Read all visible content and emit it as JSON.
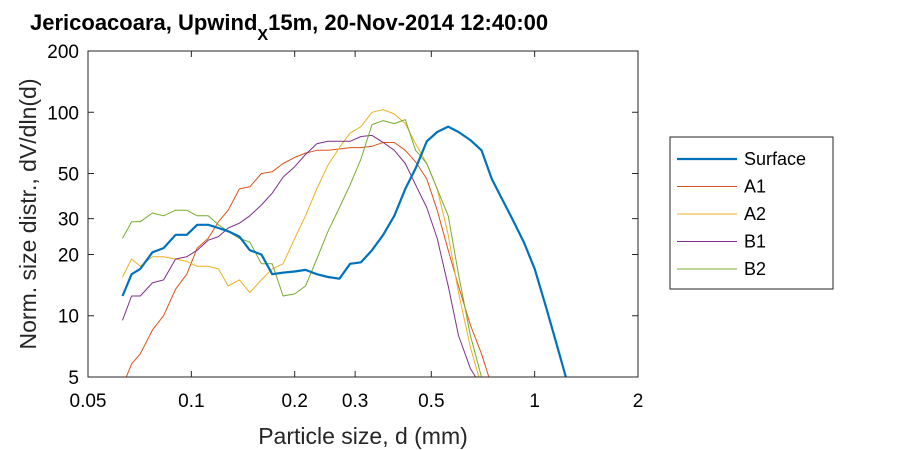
{
  "chart_data": {
    "type": "line",
    "title": {
      "part1": "Jericoacoara, Upwind",
      "subscript": "X",
      "part2": "15m, 20-Nov-2014 12:40:00"
    },
    "xlabel": "Particle size, d (mm)",
    "ylabel": "Norm. size distr., dV/dln(d)",
    "xscale": "log",
    "yscale": "log",
    "xlim": [
      0.05,
      2
    ],
    "ylim": [
      5,
      200
    ],
    "xticks": [
      0.05,
      0.1,
      0.2,
      0.3,
      0.5,
      1,
      2
    ],
    "xtick_labels": [
      "0.05",
      "0.1",
      "0.2",
      "0.3",
      "0.5",
      "1",
      "2"
    ],
    "yticks": [
      5,
      10,
      20,
      30,
      50,
      100,
      200
    ],
    "ytick_labels": [
      "5",
      "10",
      "20",
      "30",
      "50",
      "100",
      "200"
    ],
    "grid": false,
    "legend_position": "right",
    "series": [
      {
        "name": "Surface",
        "color": "#0072BD",
        "linewidth": "thick",
        "x": [
          0.063,
          0.067,
          0.071,
          0.077,
          0.083,
          0.09,
          0.097,
          0.104,
          0.112,
          0.12,
          0.128,
          0.138,
          0.148,
          0.16,
          0.172,
          0.185,
          0.2,
          0.215,
          0.232,
          0.25,
          0.27,
          0.29,
          0.312,
          0.336,
          0.362,
          0.39,
          0.42,
          0.45,
          0.485,
          0.52,
          0.56,
          0.6,
          0.65,
          0.7,
          0.75,
          0.8,
          0.86,
          0.93,
          1.0,
          1.08,
          1.16,
          1.25
        ],
        "y": [
          12.5,
          16,
          17,
          20.5,
          21.5,
          25,
          25,
          28,
          28,
          27,
          26,
          24.5,
          21,
          20,
          16,
          16.3,
          16.5,
          16.8,
          16,
          15.5,
          15.2,
          18,
          18.3,
          21,
          25,
          31,
          42,
          53,
          72,
          80,
          85,
          80,
          73,
          65,
          47,
          38,
          30,
          23,
          17,
          11,
          7.2,
          4.6
        ]
      },
      {
        "name": "A1",
        "color": "#D95319",
        "linewidth": "thin",
        "x": [
          0.063,
          0.067,
          0.071,
          0.077,
          0.083,
          0.09,
          0.097,
          0.104,
          0.112,
          0.12,
          0.128,
          0.138,
          0.148,
          0.16,
          0.172,
          0.185,
          0.2,
          0.215,
          0.232,
          0.25,
          0.27,
          0.29,
          0.312,
          0.336,
          0.362,
          0.39,
          0.42,
          0.45,
          0.485,
          0.52,
          0.56,
          0.6,
          0.65,
          0.7,
          0.75
        ],
        "y": [
          4.5,
          5.8,
          6.5,
          8.5,
          10,
          13.5,
          16,
          21.5,
          24,
          29,
          33,
          42,
          43,
          50,
          51,
          56,
          60,
          63,
          65,
          65,
          66,
          67,
          67,
          68,
          71,
          71,
          65,
          57,
          47,
          33,
          21,
          14,
          9,
          6.5,
          4.5
        ]
      },
      {
        "name": "A2",
        "color": "#EDB120",
        "linewidth": "thin",
        "x": [
          0.063,
          0.067,
          0.071,
          0.077,
          0.083,
          0.09,
          0.097,
          0.104,
          0.112,
          0.12,
          0.128,
          0.138,
          0.148,
          0.16,
          0.172,
          0.185,
          0.2,
          0.215,
          0.232,
          0.25,
          0.27,
          0.29,
          0.312,
          0.336,
          0.362,
          0.39,
          0.42,
          0.45,
          0.485,
          0.52,
          0.56,
          0.6,
          0.65,
          0.7
        ],
        "y": [
          15.5,
          19,
          17.5,
          19.5,
          19.5,
          19,
          18.5,
          17.5,
          17.5,
          17,
          14,
          15,
          13,
          15,
          17,
          18,
          24,
          31,
          42,
          55,
          67,
          79,
          85,
          100,
          103,
          98,
          88,
          70,
          56,
          42,
          25,
          13,
          7,
          4.5
        ]
      },
      {
        "name": "B1",
        "color": "#7E2F8E",
        "linewidth": "thin",
        "x": [
          0.063,
          0.067,
          0.071,
          0.077,
          0.083,
          0.09,
          0.097,
          0.104,
          0.112,
          0.12,
          0.128,
          0.138,
          0.148,
          0.16,
          0.172,
          0.185,
          0.2,
          0.215,
          0.232,
          0.25,
          0.27,
          0.29,
          0.312,
          0.336,
          0.362,
          0.39,
          0.42,
          0.45,
          0.485,
          0.52,
          0.56,
          0.6,
          0.65,
          0.7
        ],
        "y": [
          9.5,
          12.5,
          12.5,
          14.5,
          15,
          19,
          19.5,
          21,
          23.5,
          24.5,
          27,
          28.5,
          31,
          35,
          40,
          48,
          54,
          62,
          70,
          72,
          72,
          72,
          76,
          77,
          71,
          65,
          56,
          44,
          34,
          24,
          14,
          8,
          5.5,
          4.5
        ]
      },
      {
        "name": "B2",
        "color": "#77AC30",
        "linewidth": "thin",
        "x": [
          0.063,
          0.067,
          0.071,
          0.077,
          0.083,
          0.09,
          0.097,
          0.104,
          0.112,
          0.12,
          0.128,
          0.138,
          0.148,
          0.16,
          0.172,
          0.185,
          0.2,
          0.215,
          0.232,
          0.25,
          0.27,
          0.29,
          0.312,
          0.336,
          0.362,
          0.39,
          0.42,
          0.45,
          0.485,
          0.52,
          0.56,
          0.6,
          0.65,
          0.7
        ],
        "y": [
          24,
          29,
          29,
          32,
          31,
          33,
          33,
          31,
          31,
          28,
          26,
          24,
          23,
          18,
          18,
          12.5,
          12.8,
          14,
          19,
          26,
          34,
          44,
          59,
          87,
          91,
          88,
          92,
          65,
          56,
          42,
          31,
          16,
          8,
          5
        ]
      }
    ]
  }
}
